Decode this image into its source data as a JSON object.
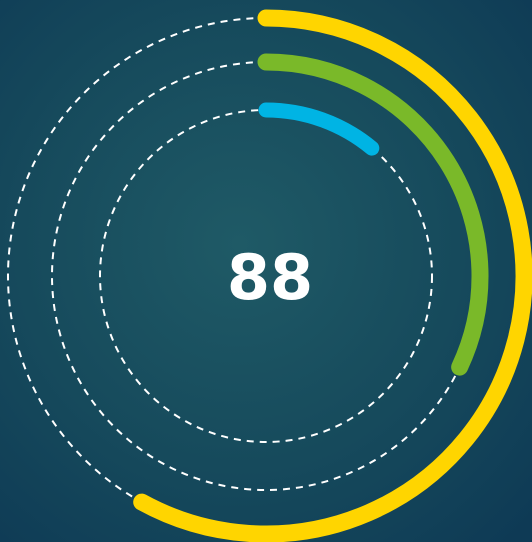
{
  "chart_data": {
    "type": "radial",
    "center_label": 88,
    "values": [
      58,
      32,
      11
    ],
    "colors": [
      "#ffd500",
      "#7ab929",
      "#00b4e4"
    ],
    "range": [
      0,
      100
    ]
  }
}
